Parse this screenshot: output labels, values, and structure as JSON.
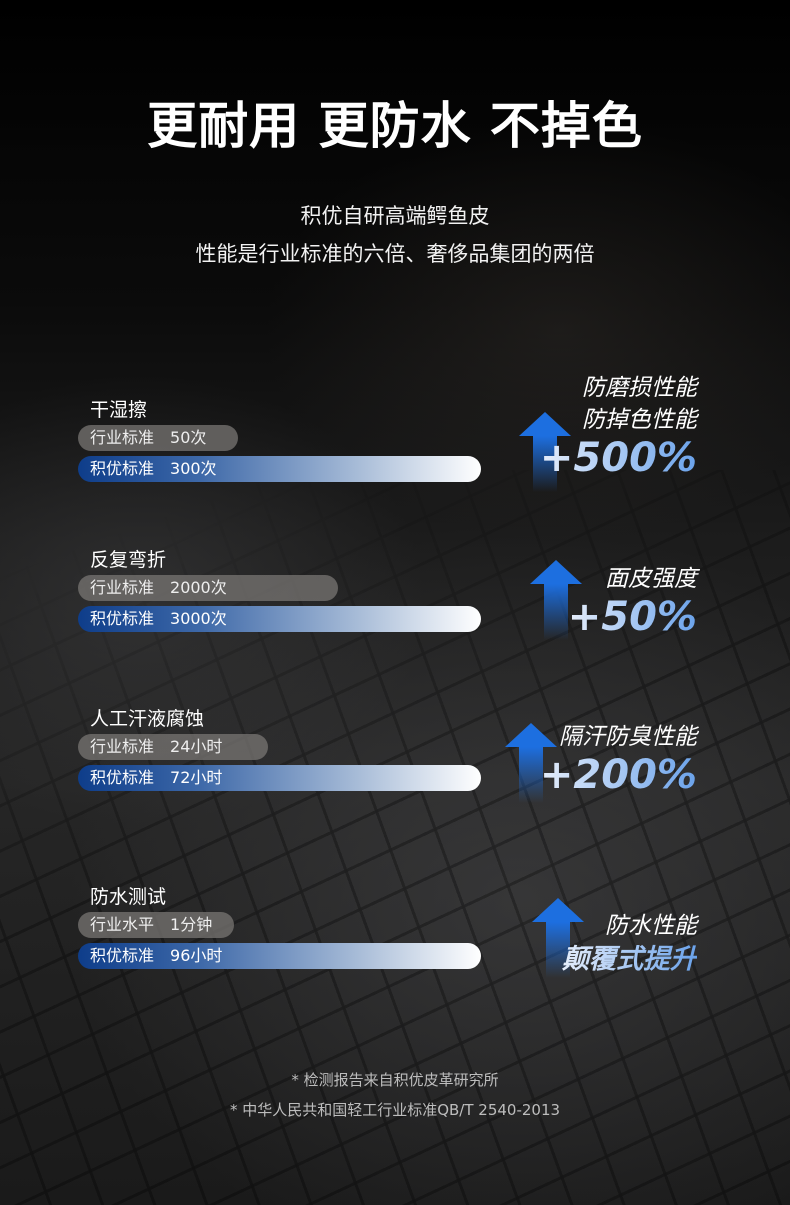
{
  "title": "更耐用 更防水 不掉色",
  "subtitle": [
    "积优自研高端鳄鱼皮",
    "性能是行业标准的六倍、奢侈品集团的两倍"
  ],
  "groups": [
    {
      "heading": "干湿擦",
      "industry": {
        "label": "行业标准",
        "value": "50次"
      },
      "jiyou": {
        "label": "积优标准",
        "value": "300次"
      },
      "claim": [
        "防磨损性能",
        "防掉色性能"
      ],
      "highlight": "+500%"
    },
    {
      "heading": "反复弯折",
      "industry": {
        "label": "行业标准",
        "value": "2000次"
      },
      "jiyou": {
        "label": "积优标准",
        "value": "3000次"
      },
      "claim": [
        "面皮强度"
      ],
      "highlight": "+50%"
    },
    {
      "heading": "人工汗液腐蚀",
      "industry": {
        "label": "行业标准",
        "value": "24小时"
      },
      "jiyou": {
        "label": "积优标准",
        "value": "72小时"
      },
      "claim": [
        "隔汗防臭性能"
      ],
      "highlight": "+200%"
    },
    {
      "heading": "防水测试",
      "industry": {
        "label": "行业水平",
        "value": "1分钟"
      },
      "jiyou": {
        "label": "积优标准",
        "value": "96小时"
      },
      "claim": [
        "防水性能"
      ],
      "highlight": "颠覆式提升"
    }
  ],
  "footnotes": [
    "* 检测报告来自积优皮革研究所",
    "* 中华人民共和国轻工行业标准QB/T  2540-2013"
  ],
  "colors": {
    "accent": "#1d6fe0",
    "bar_blue": "#0e3d8a",
    "bar_gray": "#787673"
  }
}
